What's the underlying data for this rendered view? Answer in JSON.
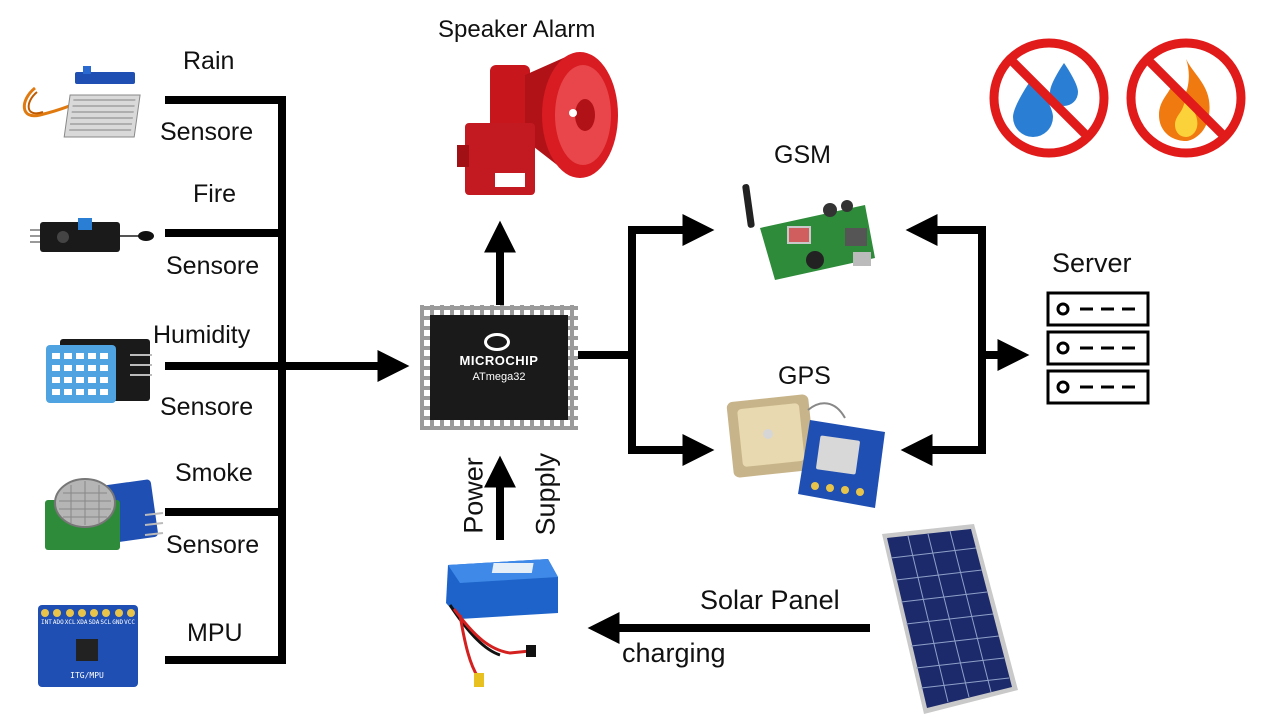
{
  "sensors": {
    "rain": {
      "name": "Rain",
      "type": "Sensore"
    },
    "fire": {
      "name": "Fire",
      "type": "Sensore"
    },
    "humidity": {
      "name": "Humidity",
      "type": "Sensore"
    },
    "smoke": {
      "name": "Smoke",
      "type": "Sensore"
    },
    "mpu": {
      "name": "MPU",
      "chip_text": "ITG/MPU",
      "pin_labels": [
        "INT",
        "ADO",
        "XCL",
        "XDA",
        "SDA",
        "SCL",
        "GND",
        "VCC"
      ]
    }
  },
  "alarm": {
    "label": "Speaker Alarm"
  },
  "mcu": {
    "brand": "MICROCHIP",
    "model": "ATmega32"
  },
  "power": {
    "label1": "Power",
    "label2": "Supply"
  },
  "gsm": {
    "label": "GSM"
  },
  "gps": {
    "label": "GPS"
  },
  "server": {
    "label": "Server"
  },
  "solar": {
    "label": "Solar Panel",
    "charging": "charging"
  },
  "colors": {
    "alarm_red": "#c8161d",
    "pcb_green": "#2e8b3a",
    "pcb_blue": "#1f4fb3",
    "battery_blue": "#1d63c9",
    "prohibit_red": "#e11a1a",
    "water_blue": "#2a7fd4",
    "fire_orange": "#f07a10"
  },
  "icons": [
    "no-water-icon",
    "no-fire-icon"
  ]
}
